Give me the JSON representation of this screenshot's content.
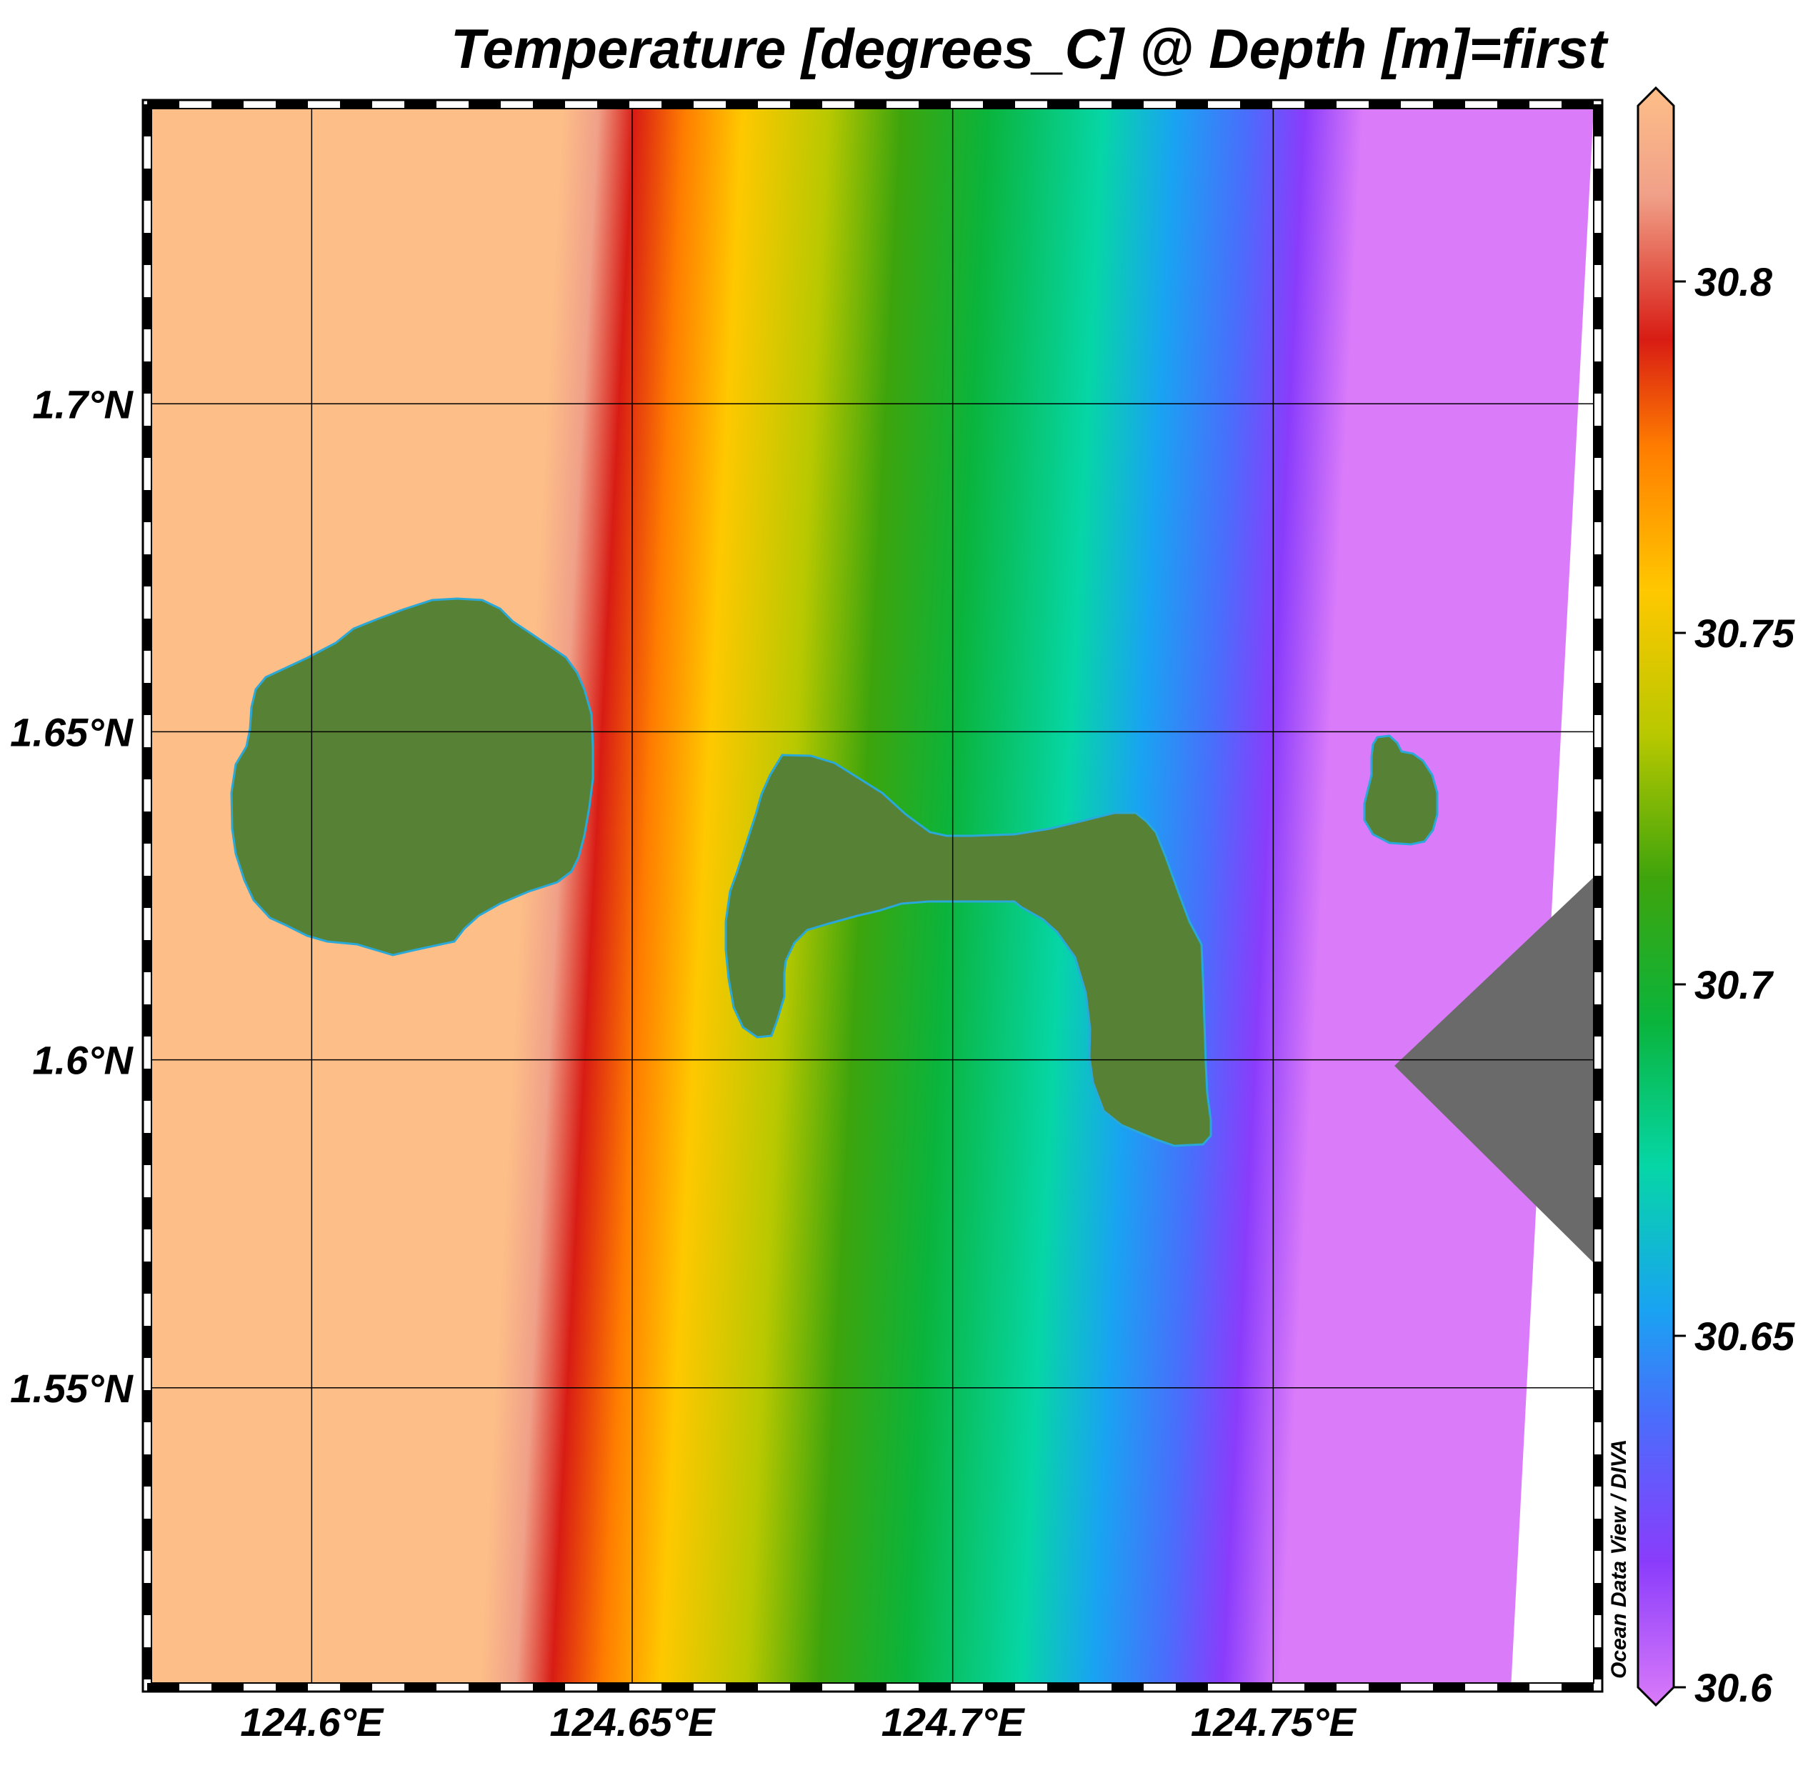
{
  "title": "Temperature [degrees_C] @ Depth [m]=first",
  "credit": "Ocean Data View / DIVA",
  "map": {
    "lon_range": [
      124.575,
      124.8
    ],
    "lat_range": [
      1.505,
      1.745
    ],
    "lon_ticks": [
      {
        "value": 124.6,
        "label": "124.6°E"
      },
      {
        "value": 124.65,
        "label": "124.65°E"
      },
      {
        "value": 124.7,
        "label": "124.7°E"
      },
      {
        "value": 124.75,
        "label": "124.75°E"
      }
    ],
    "lat_ticks": [
      {
        "value": 1.7,
        "label": "1.7°N"
      },
      {
        "value": 1.65,
        "label": "1.65°N"
      },
      {
        "value": 1.6,
        "label": "1.6°N"
      },
      {
        "value": 1.55,
        "label": "1.55°N"
      }
    ],
    "land_color": "#578235",
    "coast_color": "#2aa8d8",
    "nodata_color": "#6a6a6a"
  },
  "colorbar": {
    "min": 30.6,
    "max": 30.825,
    "ticks": [
      {
        "value": 30.8,
        "label": "30.8"
      },
      {
        "value": 30.75,
        "label": "30.75"
      },
      {
        "value": 30.7,
        "label": "30.7"
      },
      {
        "value": 30.65,
        "label": "30.65"
      },
      {
        "value": 30.6,
        "label": "30.6"
      }
    ],
    "stops": [
      {
        "value": 30.6,
        "color": "#da7bfa"
      },
      {
        "value": 30.62,
        "color": "#8a3cfb"
      },
      {
        "value": 30.64,
        "color": "#4a6dfc"
      },
      {
        "value": 30.655,
        "color": "#19a3f2"
      },
      {
        "value": 30.675,
        "color": "#06d6a6"
      },
      {
        "value": 30.695,
        "color": "#0ab43c"
      },
      {
        "value": 30.715,
        "color": "#3ea40c"
      },
      {
        "value": 30.735,
        "color": "#b8c800"
      },
      {
        "value": 30.755,
        "color": "#ffc800"
      },
      {
        "value": 30.775,
        "color": "#ff7d00"
      },
      {
        "value": 30.79,
        "color": "#d81c14"
      },
      {
        "value": 30.81,
        "color": "#f0a088"
      },
      {
        "value": 30.825,
        "color": "#fdbe88"
      }
    ]
  }
}
